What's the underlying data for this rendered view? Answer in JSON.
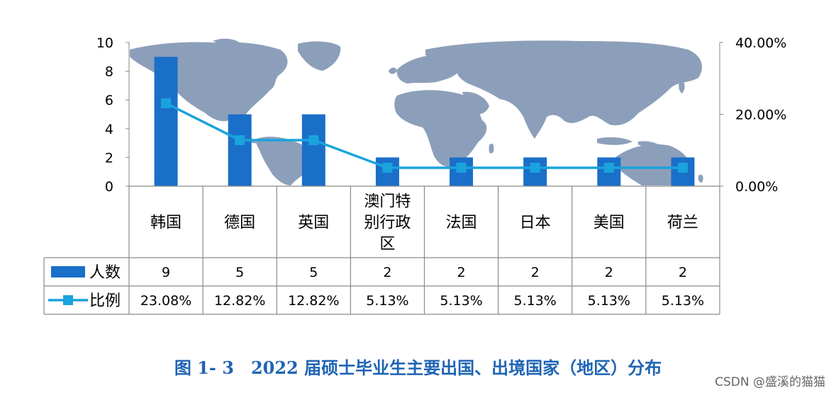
{
  "chart_data": {
    "type": "bar",
    "categories": [
      "韩国",
      "德国",
      "英国",
      "澳门特别行政区",
      "法国",
      "日本",
      "美国",
      "荷兰"
    ],
    "category_lines": [
      [
        "韩国"
      ],
      [
        "德国"
      ],
      [
        "英国"
      ],
      [
        "澳门特",
        "别行政",
        "区"
      ],
      [
        "法国"
      ],
      [
        "日本"
      ],
      [
        "美国"
      ],
      [
        "荷兰"
      ]
    ],
    "series": [
      {
        "name": "人数",
        "type": "bar",
        "axis": "left",
        "color": "#1a6fc9",
        "values": [
          9,
          5,
          5,
          2,
          2,
          2,
          2,
          2
        ],
        "labels": [
          "9",
          "5",
          "5",
          "2",
          "2",
          "2",
          "2",
          "2"
        ]
      },
      {
        "name": "比例",
        "type": "line",
        "axis": "right",
        "color": "#1aa3dc",
        "marker": "square",
        "values": [
          23.08,
          12.82,
          12.82,
          5.13,
          5.13,
          5.13,
          5.13,
          5.13
        ],
        "labels": [
          "23.08%",
          "12.82%",
          "12.82%",
          "5.13%",
          "5.13%",
          "5.13%",
          "5.13%",
          "5.13%"
        ]
      }
    ],
    "y_left": {
      "ylim": [
        0,
        10
      ],
      "ticks": [
        "0",
        "2",
        "4",
        "6",
        "8",
        "10"
      ]
    },
    "y_right": {
      "ylim": [
        0,
        40
      ],
      "ticks": [
        "0.00%",
        "20.00%",
        "40.00%"
      ]
    },
    "data_table": true,
    "background": "world map"
  },
  "caption": "图 1- 3　2022 届硕士毕业生主要出国、出境国家（地区）分布",
  "watermark": "CSDN @盛溪的猫猫"
}
